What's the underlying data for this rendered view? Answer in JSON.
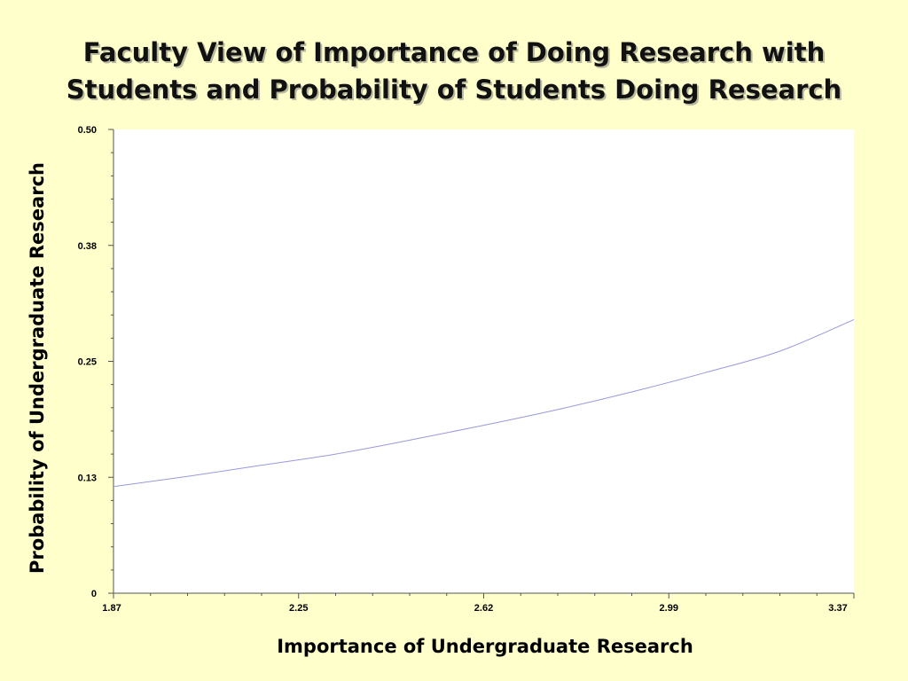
{
  "slide": {
    "title_line1": "Faculty View of Importance of Doing Research with",
    "title_line2": "Students and Probability of Students Doing Research",
    "background": "#ffffcc"
  },
  "chart_data": {
    "type": "line",
    "title": "",
    "xlabel": "Importance of Undergraduate Research",
    "ylabel": "Probability of Undergraduate Research",
    "xlim": [
      1.87,
      3.37
    ],
    "ylim": [
      0,
      0.5
    ],
    "x_ticks": [
      "1.87",
      "2.25",
      "2.62",
      "2.99",
      "3.37"
    ],
    "y_ticks": [
      "0",
      "0.13",
      "0.25",
      "0.38",
      "0.50"
    ],
    "grid": false,
    "legend": "none",
    "plot_background": "#ffffff",
    "line_color": "#9999dd",
    "series": [
      {
        "x": [
          1.87,
          2.02,
          2.17,
          2.32,
          2.47,
          2.62,
          2.77,
          2.92,
          3.07,
          3.22,
          3.37
        ],
        "values": [
          0.115,
          0.126,
          0.138,
          0.15,
          0.165,
          0.181,
          0.198,
          0.217,
          0.238,
          0.261,
          0.295
        ]
      }
    ]
  }
}
